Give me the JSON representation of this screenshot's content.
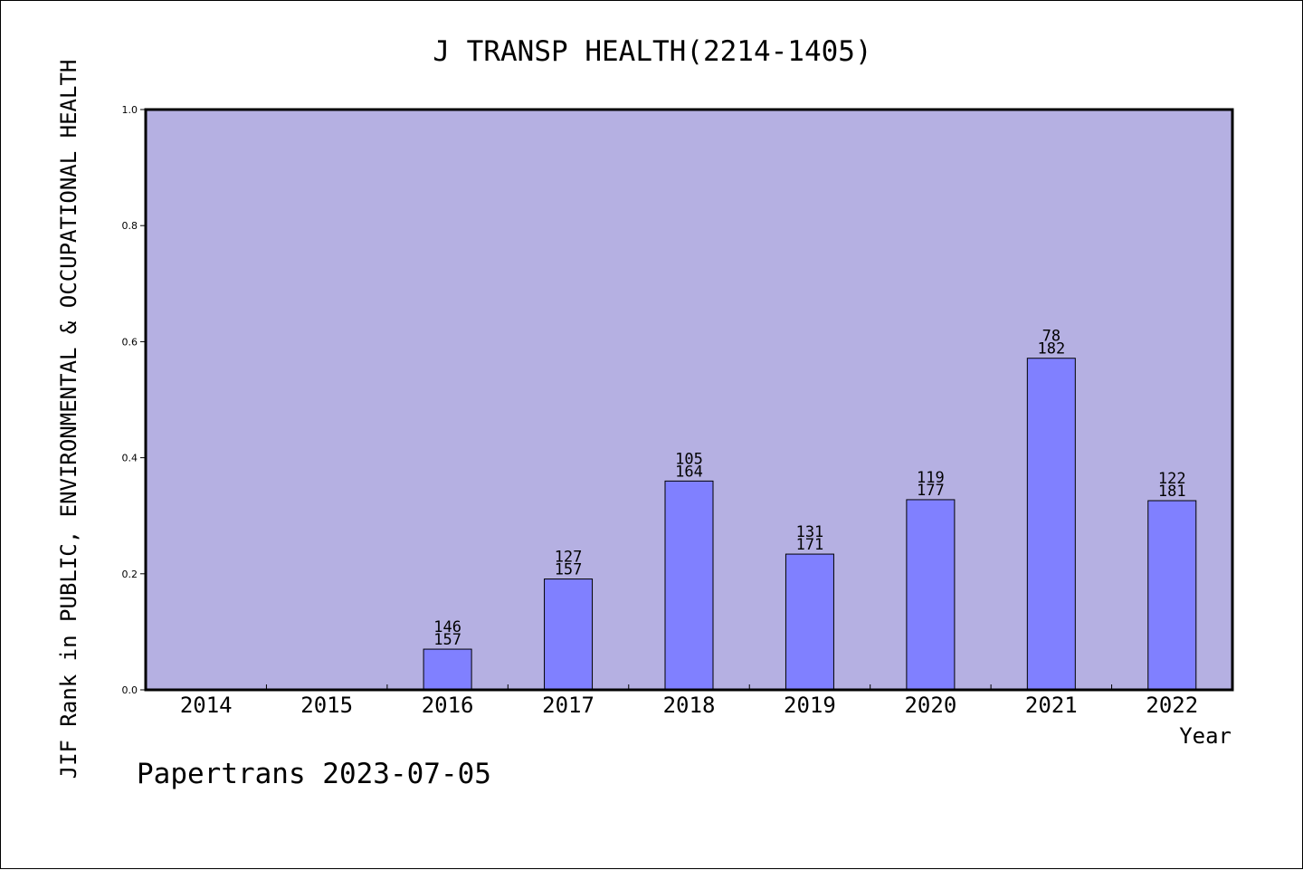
{
  "chart_data": {
    "type": "bar",
    "title": "J TRANSP HEALTH(2214-1405)",
    "xlabel": "Year",
    "ylabel": "JIF Rank in PUBLIC, ENVIRONMENTAL & OCCUPATIONAL HEALTH",
    "ylim": [
      0,
      1.0
    ],
    "yticks": [
      "0.0",
      "0.2",
      "0.4",
      "0.6",
      "0.8",
      "1.0"
    ],
    "categories": [
      "2014",
      "2015",
      "2016",
      "2017",
      "2018",
      "2019",
      "2020",
      "2021",
      "2022"
    ],
    "values": [
      null,
      null,
      0.0701,
      0.191,
      0.3598,
      0.2339,
      0.3277,
      0.5714,
      0.326
    ],
    "rank_labels": [
      "",
      "",
      "146",
      "127",
      "105",
      "131",
      "119",
      "78",
      "122"
    ],
    "total_labels": [
      "",
      "",
      "157",
      "157",
      "164",
      "171",
      "177",
      "182",
      "181"
    ],
    "grid": false,
    "legend": "none",
    "colors": {
      "plot_background": "#b5b0e2",
      "bar_fill": "#8080ff",
      "bar_stroke": "#000000",
      "axis": "#000000"
    }
  },
  "footer": {
    "credit": "Papertrans 2023-07-05"
  }
}
